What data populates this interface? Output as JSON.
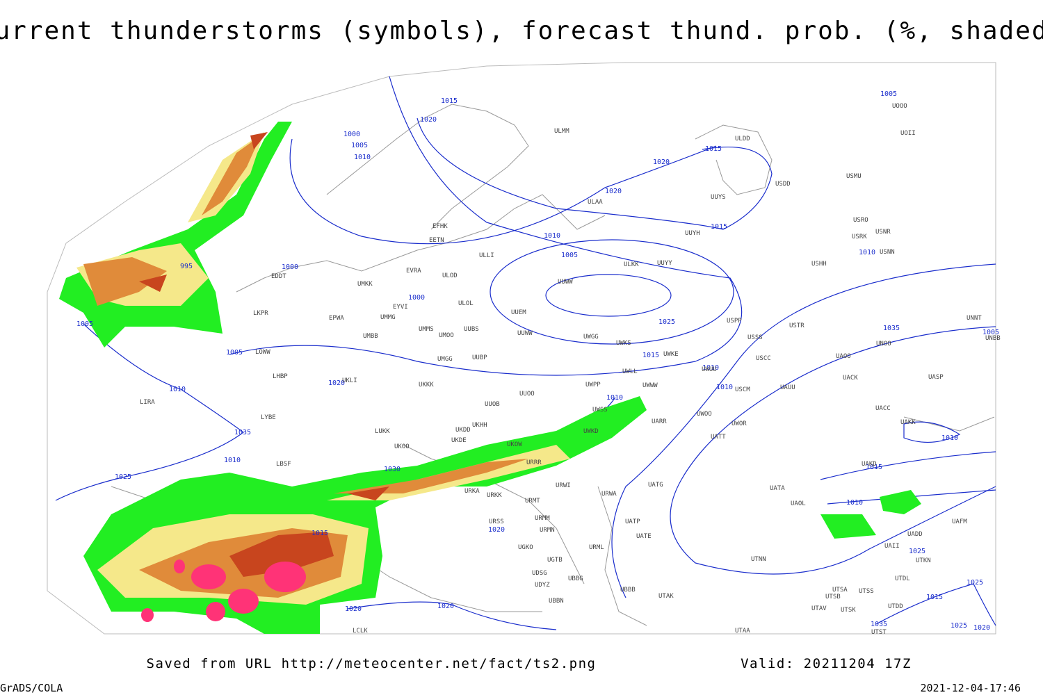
{
  "title": "Current thunderstorms (symbols), forecast thund. prob. (%, shaded)",
  "footer": {
    "saved": "Saved from URL http://meteocenter.net/fact/ts2.png",
    "valid": "Valid: 20211204 17Z",
    "software": "GrADS/COLA",
    "timestamp": "2021-12-04-17:46"
  },
  "isobar_labels": [
    "1015",
    "1020",
    "1005",
    "1000",
    "1005",
    "1010",
    "1015",
    "1020",
    "1020",
    "1015",
    "1010",
    "995",
    "1000",
    "1005",
    "1010",
    "1005",
    "1000",
    "1025",
    "1035",
    "1005",
    "1005",
    "1015",
    "1010",
    "1020",
    "1010",
    "1010",
    "1010",
    "1035",
    "1010",
    "1010",
    "1030",
    "1015",
    "1025",
    "1010",
    "1015",
    "1020",
    "1025",
    "1025",
    "1015",
    "1020",
    "1020",
    "1035",
    "1025",
    "1020"
  ],
  "stations": [
    "ULMM",
    "ULDD",
    "UOII",
    "UOOO",
    "USMU",
    "USDD",
    "ULAA",
    "UUYS",
    "USRO",
    "USRK",
    "USNR",
    "USHH",
    "USNN",
    "EFHK",
    "EETN",
    "ULLI",
    "UUYH",
    "EVRA",
    "ULOD",
    "UMKK",
    "ULKK",
    "UUYY",
    "UUWW",
    "EDDT",
    "EYVI",
    "ULOL",
    "UUEM",
    "UMMG",
    "EPWA",
    "LKPR",
    "UMMS",
    "UUBS",
    "UMOO",
    "UUWW",
    "USPP",
    "USTR",
    "UMBB",
    "UWGG",
    "UWKS",
    "USSS",
    "UNNT",
    "UNBB",
    "UNOO",
    "LOWW",
    "UWKE",
    "UWUU",
    "USCC",
    "UAOO",
    "UMGG",
    "UUBP",
    "UKLI",
    "LHBP",
    "UWLL",
    "UWWW",
    "USCM",
    "UAUU",
    "UACK",
    "UASP",
    "UKKK",
    "UUOO",
    "UWPP",
    "LIRA",
    "UUOB",
    "UWSS",
    "UACC",
    "UAKK",
    "LYBE",
    "UWOO",
    "UARR",
    "UWOR",
    "LUKK",
    "UKDD",
    "UKHH",
    "UKDE",
    "UWKD",
    "UATT",
    "UKOO",
    "UKOW",
    "LBSF",
    "URRR",
    "UAKD",
    "UATG",
    "URWI",
    "URKA",
    "URKK",
    "URWA",
    "UATA",
    "UAOL",
    "URMT",
    "URMM",
    "UATP",
    "URSS",
    "URMN",
    "UATE",
    "UAFM",
    "UADD",
    "UGKO",
    "URML",
    "UAII",
    "UGTB",
    "UTNN",
    "UTKN",
    "UDSG",
    "UBBG",
    "UTDL",
    "UDYZ",
    "UBBB",
    "UTAK",
    "UTSA",
    "UTSS",
    "UBBN",
    "UTSB",
    "UTDD",
    "UTAV",
    "UTSK",
    "LCLK",
    "UTAA",
    "UTST"
  ]
}
